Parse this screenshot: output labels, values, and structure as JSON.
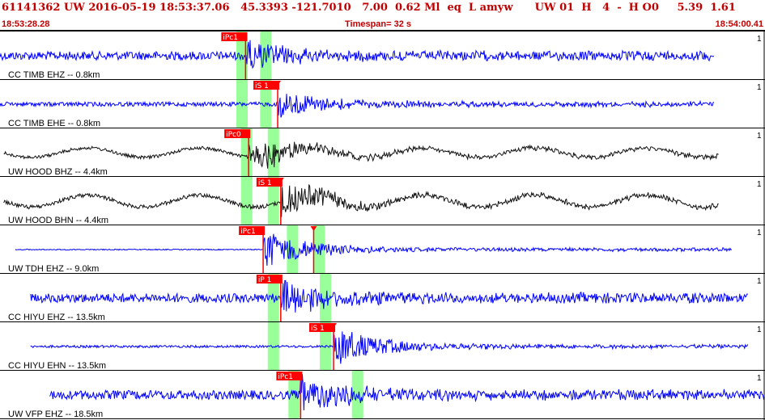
{
  "header": {
    "title": "61141362 UW 2016-05-19 18:53:37.06   45.3393 -121.7010   7.00  0.62 Ml  eq  L amyw      UW 01  H   4  -  H O0     5.39  1.61",
    "time_start": "18:53:28.28",
    "timespan": "Timespan=  32 s",
    "time_end": "18:54:00.41"
  },
  "colors": {
    "trace_blue": "#0000ff",
    "trace_black": "#111111",
    "pick_red": "#ff0000",
    "window_green": "#99ff99",
    "title_red": "#c00000",
    "divider": "#000000"
  },
  "channels": [
    {
      "label": "CC TIMB EHZ -- 0.8km",
      "scale": "1",
      "color": "blue",
      "start": 0.0,
      "end": 0.934,
      "amp": 0.34,
      "noise": 0.55,
      "longwave": 0.0,
      "picks": [
        {
          "text": "iPc1",
          "pos": 0.321,
          "kind": "P"
        }
      ],
      "windows": [
        0.309,
        0.34
      ]
    },
    {
      "label": "CC TIMB EHE -- 0.8km",
      "scale": "1",
      "color": "blue",
      "start": 0.0,
      "end": 0.934,
      "amp": 0.34,
      "noise": 0.28,
      "longwave": 0.0,
      "picks": [
        {
          "text": "iS 1",
          "pos": 0.363,
          "kind": "S"
        }
      ],
      "windows": [
        0.309,
        0.34
      ]
    },
    {
      "label": "UW HOOD BHZ -- 4.4km",
      "scale": "1",
      "color": "black",
      "start": 0.005,
      "end": 0.94,
      "amp": 0.4,
      "noise": 0.18,
      "longwave": 0.6,
      "picks": [
        {
          "text": "iPc0",
          "pos": 0.325,
          "kind": "P"
        }
      ],
      "windows": [
        0.315,
        0.35
      ]
    },
    {
      "label": "UW HOOD BHN -- 4.4km",
      "scale": "1",
      "color": "black",
      "start": 0.005,
      "end": 0.94,
      "amp": 0.4,
      "noise": 0.22,
      "longwave": 0.75,
      "picks": [
        {
          "text": "iS 1",
          "pos": 0.367,
          "kind": "S"
        }
      ],
      "windows": [
        0.315,
        0.35
      ]
    },
    {
      "label": "UW TDH EHZ -- 9.0km",
      "scale": "1",
      "color": "blue",
      "start": 0.02,
      "end": 0.957,
      "amp": 0.44,
      "noise": 0.05,
      "longwave": 0.0,
      "picks": [
        {
          "text": "iPc1",
          "pos": 0.344,
          "kind": "P"
        },
        {
          "text": "",
          "pos": 0.41,
          "kind": "S"
        }
      ],
      "windows": [
        0.375,
        0.41
      ]
    },
    {
      "label": "CC HIYU EHZ -- 13.5km",
      "scale": "1",
      "color": "blue",
      "start": 0.04,
      "end": 0.978,
      "amp": 0.44,
      "noise": 0.45,
      "longwave": 0.0,
      "picks": [
        {
          "text": "iP 1",
          "pos": 0.367,
          "kind": "P"
        }
      ],
      "windows": [
        0.35,
        0.418
      ]
    },
    {
      "label": "CC HIYU EHN -- 13.5km",
      "scale": "1",
      "color": "blue",
      "start": 0.04,
      "end": 0.978,
      "amp": 0.44,
      "noise": 0.12,
      "longwave": 0.0,
      "picks": [
        {
          "text": "iS 1",
          "pos": 0.436,
          "kind": "S"
        }
      ],
      "windows": [
        0.35,
        0.418
      ]
    },
    {
      "label": "UW VFP EHZ -- 18.5km",
      "scale": "1",
      "color": "blue",
      "start": 0.065,
      "end": 1.0,
      "amp": 0.44,
      "noise": 0.45,
      "longwave": 0.0,
      "picks": [
        {
          "text": "iPc1",
          "pos": 0.393,
          "kind": "P"
        }
      ],
      "windows": [
        0.377,
        0.46
      ]
    }
  ]
}
